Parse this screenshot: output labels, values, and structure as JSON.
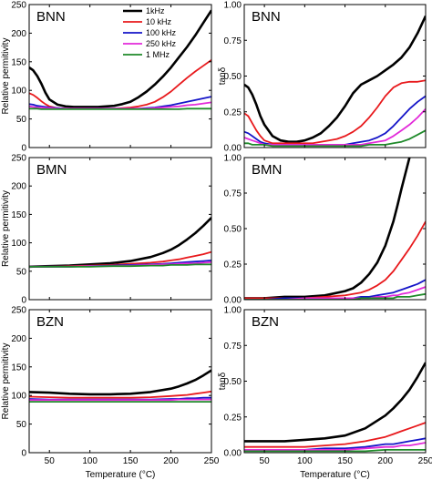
{
  "colors": {
    "1kHz": "#000000",
    "10 kHz": "#e8191c",
    "100 kHz": "#1515c8",
    "250 kHz": "#e22ad9",
    "1 MHz": "#1f8a2a"
  },
  "legend": [
    "1kHz",
    "10 kHz",
    "100 kHz",
    "250 kHz",
    "1 MHz"
  ],
  "chart_data": [
    {
      "type": "line",
      "title": "BNN",
      "xlabel": "",
      "ylabel": "Relative permitivity",
      "xlim": [
        25,
        250
      ],
      "ylim": [
        0,
        250
      ],
      "xticks": [
        50,
        100,
        150,
        200,
        250
      ],
      "yticks": [
        0,
        50,
        100,
        150,
        200,
        250
      ],
      "legend_position": "top-right",
      "x": [
        25,
        30,
        35,
        40,
        45,
        50,
        60,
        70,
        80,
        90,
        100,
        110,
        120,
        130,
        140,
        150,
        160,
        170,
        180,
        190,
        200,
        210,
        220,
        230,
        240,
        250
      ],
      "series": [
        {
          "name": "1kHz",
          "values": [
            140,
            135,
            125,
            112,
            96,
            84,
            75,
            72,
            71,
            71,
            71,
            71,
            72,
            73,
            76,
            80,
            88,
            98,
            110,
            124,
            140,
            158,
            176,
            196,
            218,
            240
          ]
        },
        {
          "name": "10 kHz",
          "values": [
            95,
            92,
            87,
            81,
            76,
            72,
            69,
            68,
            68,
            68,
            68,
            68,
            68,
            68,
            69,
            70,
            72,
            75,
            80,
            88,
            98,
            110,
            122,
            133,
            143,
            153
          ]
        },
        {
          "name": "100 kHz",
          "values": [
            76,
            75,
            73,
            72,
            71,
            70,
            69,
            68,
            68,
            68,
            68,
            68,
            68,
            68,
            68,
            68,
            68,
            69,
            70,
            72,
            74,
            77,
            80,
            83,
            86,
            89
          ]
        },
        {
          "name": "250 kHz",
          "values": [
            72,
            71,
            70,
            70,
            69,
            69,
            68,
            68,
            68,
            68,
            68,
            68,
            68,
            68,
            68,
            68,
            68,
            68,
            69,
            70,
            71,
            72,
            74,
            75,
            77,
            79
          ]
        },
        {
          "name": "1 MHz",
          "values": [
            68,
            68,
            68,
            67,
            67,
            67,
            67,
            67,
            67,
            67,
            67,
            67,
            67,
            67,
            67,
            67,
            67,
            67,
            67,
            67,
            67,
            67,
            68,
            68,
            68,
            68
          ]
        }
      ]
    },
    {
      "type": "line",
      "title": "BNN",
      "xlabel": "",
      "ylabel": "tanδ",
      "xlim": [
        25,
        250
      ],
      "ylim": [
        0,
        1.0
      ],
      "xticks": [
        50,
        100,
        150,
        200,
        250
      ],
      "yticks": [
        0.0,
        0.25,
        0.5,
        0.75,
        1.0
      ],
      "x": [
        25,
        30,
        35,
        40,
        45,
        50,
        60,
        70,
        80,
        90,
        100,
        110,
        120,
        130,
        140,
        150,
        160,
        170,
        180,
        190,
        200,
        210,
        220,
        230,
        240,
        250
      ],
      "series": [
        {
          "name": "1kHz",
          "values": [
            0.44,
            0.42,
            0.37,
            0.3,
            0.22,
            0.16,
            0.08,
            0.05,
            0.04,
            0.04,
            0.05,
            0.07,
            0.1,
            0.15,
            0.21,
            0.29,
            0.38,
            0.44,
            0.47,
            0.5,
            0.54,
            0.58,
            0.63,
            0.7,
            0.8,
            0.92
          ]
        },
        {
          "name": "10 kHz",
          "values": [
            0.24,
            0.22,
            0.17,
            0.12,
            0.08,
            0.05,
            0.03,
            0.03,
            0.03,
            0.03,
            0.03,
            0.03,
            0.04,
            0.05,
            0.06,
            0.08,
            0.11,
            0.15,
            0.21,
            0.28,
            0.36,
            0.42,
            0.45,
            0.46,
            0.46,
            0.47
          ]
        },
        {
          "name": "100 kHz",
          "values": [
            0.11,
            0.1,
            0.08,
            0.06,
            0.04,
            0.03,
            0.02,
            0.02,
            0.02,
            0.02,
            0.02,
            0.02,
            0.02,
            0.02,
            0.02,
            0.02,
            0.03,
            0.04,
            0.05,
            0.07,
            0.1,
            0.15,
            0.21,
            0.27,
            0.32,
            0.36
          ]
        },
        {
          "name": "250 kHz",
          "values": [
            0.07,
            0.06,
            0.05,
            0.04,
            0.03,
            0.02,
            0.02,
            0.02,
            0.02,
            0.02,
            0.02,
            0.02,
            0.02,
            0.02,
            0.02,
            0.02,
            0.02,
            0.02,
            0.03,
            0.04,
            0.05,
            0.08,
            0.12,
            0.16,
            0.21,
            0.27
          ]
        },
        {
          "name": "1 MHz",
          "values": [
            0.03,
            0.03,
            0.02,
            0.02,
            0.02,
            0.02,
            0.01,
            0.01,
            0.01,
            0.01,
            0.01,
            0.01,
            0.01,
            0.01,
            0.01,
            0.01,
            0.01,
            0.01,
            0.02,
            0.02,
            0.02,
            0.03,
            0.04,
            0.06,
            0.09,
            0.12
          ]
        }
      ]
    },
    {
      "type": "line",
      "title": "BMN",
      "xlabel": "",
      "ylabel": "Relative permitivity",
      "xlim": [
        25,
        250
      ],
      "ylim": [
        0,
        250
      ],
      "xticks": [
        50,
        100,
        150,
        200,
        250
      ],
      "yticks": [
        0,
        50,
        100,
        150,
        200,
        250
      ],
      "x": [
        25,
        50,
        75,
        100,
        125,
        150,
        175,
        190,
        200,
        210,
        220,
        230,
        240,
        250
      ],
      "series": [
        {
          "name": "1kHz",
          "values": [
            58,
            59,
            60,
            62,
            64,
            68,
            75,
            82,
            88,
            96,
            106,
            117,
            130,
            144
          ]
        },
        {
          "name": "10 kHz",
          "values": [
            58,
            58,
            59,
            60,
            61,
            63,
            65,
            67,
            69,
            71,
            74,
            77,
            80,
            84
          ]
        },
        {
          "name": "100 kHz",
          "values": [
            58,
            58,
            58,
            59,
            60,
            61,
            62,
            63,
            64,
            65,
            66,
            67,
            68,
            69
          ]
        },
        {
          "name": "250 kHz",
          "values": [
            58,
            58,
            58,
            59,
            59,
            60,
            61,
            62,
            62,
            63,
            64,
            64,
            65,
            66
          ]
        },
        {
          "name": "1 MHz",
          "values": [
            58,
            58,
            58,
            58,
            59,
            59,
            60,
            60,
            61,
            61,
            61,
            62,
            62,
            62
          ]
        }
      ]
    },
    {
      "type": "line",
      "title": "BMN",
      "xlabel": "",
      "ylabel": "",
      "xlim": [
        25,
        250
      ],
      "ylim": [
        0,
        1.0
      ],
      "xticks": [
        50,
        100,
        150,
        200,
        250
      ],
      "yticks": [
        0.0,
        0.25,
        0.5,
        0.75,
        1.0
      ],
      "x": [
        25,
        50,
        75,
        100,
        125,
        150,
        160,
        170,
        180,
        190,
        200,
        210,
        215,
        220,
        230,
        240,
        250
      ],
      "series": [
        {
          "name": "1kHz",
          "values": [
            0.01,
            0.01,
            0.02,
            0.02,
            0.03,
            0.06,
            0.08,
            0.12,
            0.18,
            0.26,
            0.38,
            0.55,
            0.66,
            0.78,
            1.0,
            null,
            null
          ]
        },
        {
          "name": "10 kHz",
          "values": [
            0.01,
            0.01,
            0.01,
            0.01,
            0.02,
            0.03,
            0.04,
            0.05,
            0.07,
            0.1,
            0.14,
            0.2,
            0.24,
            0.28,
            0.36,
            0.45,
            0.55
          ]
        },
        {
          "name": "100 kHz",
          "values": [
            0.0,
            0.0,
            0.01,
            0.01,
            0.01,
            0.01,
            0.01,
            0.02,
            0.02,
            0.03,
            0.04,
            0.05,
            0.06,
            0.07,
            0.09,
            0.11,
            0.14
          ]
        },
        {
          "name": "250 kHz",
          "values": [
            0.0,
            0.0,
            0.0,
            0.01,
            0.01,
            0.01,
            0.01,
            0.01,
            0.01,
            0.02,
            0.02,
            0.03,
            0.03,
            0.04,
            0.05,
            0.07,
            0.09
          ]
        },
        {
          "name": "1 MHz",
          "values": [
            0.0,
            0.0,
            0.0,
            0.0,
            0.0,
            0.0,
            0.0,
            0.01,
            0.01,
            0.01,
            0.01,
            0.01,
            0.02,
            0.02,
            0.02,
            0.03,
            0.04
          ]
        }
      ]
    },
    {
      "type": "line",
      "title": "BZN",
      "xlabel": "Temperature (°C)",
      "ylabel": "Relative permitivity",
      "xlim": [
        25,
        250
      ],
      "ylim": [
        0,
        250
      ],
      "xticks": [
        50,
        100,
        150,
        200,
        250
      ],
      "yticks": [
        0,
        50,
        100,
        150,
        200,
        250
      ],
      "x": [
        25,
        50,
        75,
        100,
        125,
        150,
        175,
        200,
        210,
        220,
        230,
        240,
        250
      ],
      "series": [
        {
          "name": "1kHz",
          "values": [
            106,
            105,
            103,
            102,
            102,
            103,
            106,
            112,
            116,
            121,
            127,
            135,
            144
          ]
        },
        {
          "name": "10 kHz",
          "values": [
            98,
            97,
            96,
            96,
            96,
            96,
            97,
            99,
            100,
            101,
            103,
            105,
            107
          ]
        },
        {
          "name": "100 kHz",
          "values": [
            94,
            93,
            93,
            93,
            93,
            93,
            93,
            94,
            94,
            95,
            95,
            96,
            96
          ]
        },
        {
          "name": "250 kHz",
          "values": [
            92,
            92,
            92,
            92,
            92,
            92,
            92,
            92,
            93,
            93,
            93,
            93,
            93
          ]
        },
        {
          "name": "1 MHz",
          "values": [
            89,
            89,
            89,
            89,
            89,
            89,
            89,
            89,
            89,
            89,
            89,
            89,
            89
          ]
        }
      ]
    },
    {
      "type": "line",
      "title": "BZN",
      "xlabel": "Temperature (°C)",
      "ylabel": "tanδ",
      "xlim": [
        25,
        250
      ],
      "ylim": [
        0,
        1.0
      ],
      "xticks": [
        50,
        100,
        150,
        200,
        250
      ],
      "yticks": [
        0.0,
        0.25,
        0.5,
        0.75,
        1.0
      ],
      "x": [
        25,
        50,
        75,
        100,
        125,
        150,
        175,
        200,
        210,
        220,
        230,
        240,
        250
      ],
      "series": [
        {
          "name": "1kHz",
          "values": [
            0.08,
            0.08,
            0.08,
            0.09,
            0.1,
            0.12,
            0.17,
            0.26,
            0.31,
            0.37,
            0.44,
            0.53,
            0.63
          ]
        },
        {
          "name": "10 kHz",
          "values": [
            0.04,
            0.04,
            0.04,
            0.04,
            0.05,
            0.06,
            0.08,
            0.11,
            0.13,
            0.15,
            0.17,
            0.19,
            0.21
          ]
        },
        {
          "name": "100 kHz",
          "values": [
            0.02,
            0.02,
            0.02,
            0.02,
            0.03,
            0.03,
            0.04,
            0.06,
            0.06,
            0.07,
            0.08,
            0.09,
            0.1
          ]
        },
        {
          "name": "250 kHz",
          "values": [
            0.02,
            0.02,
            0.02,
            0.02,
            0.02,
            0.02,
            0.03,
            0.04,
            0.04,
            0.05,
            0.05,
            0.06,
            0.07
          ]
        },
        {
          "name": "1 MHz",
          "values": [
            0.01,
            0.01,
            0.01,
            0.01,
            0.01,
            0.01,
            0.01,
            0.02,
            0.02,
            0.02,
            0.02,
            0.02,
            0.02
          ]
        }
      ]
    }
  ]
}
